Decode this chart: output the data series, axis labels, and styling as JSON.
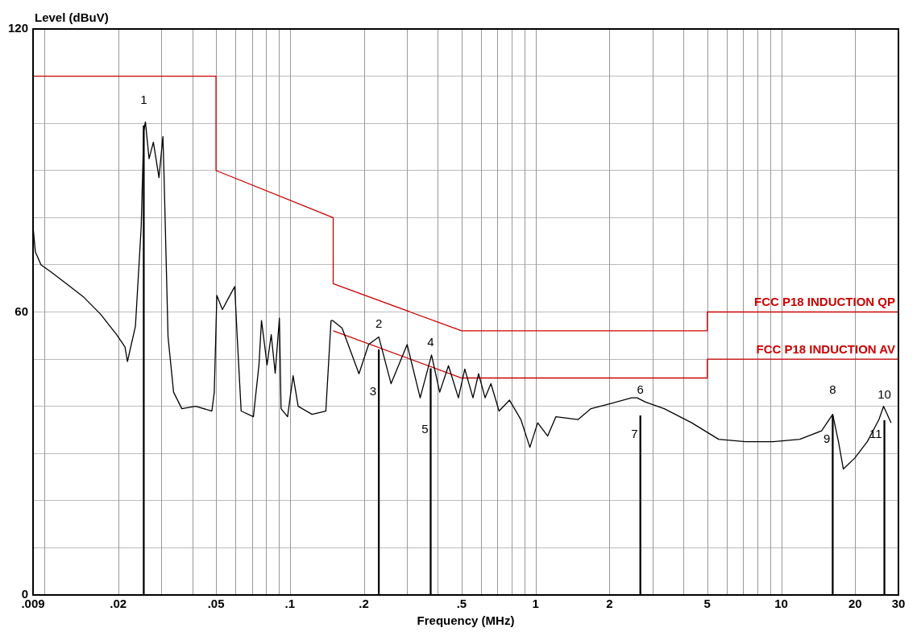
{
  "chart_data": {
    "type": "line",
    "xlabel": "Frequency (MHz)",
    "ylabel": "Level (dBuV)",
    "log": "x",
    "grid": true,
    "legend": false,
    "marker": "none",
    "line_style": "solid",
    "xlim": [
      0.009,
      30
    ],
    "ylim": [
      0,
      120
    ],
    "xticks": [
      {
        "value": 0.009,
        "label": ".009"
      },
      {
        "value": 0.01,
        "label": null
      },
      {
        "value": 0.02,
        "label": ".02"
      },
      {
        "value": 0.03,
        "label": null
      },
      {
        "value": 0.04,
        "label": null
      },
      {
        "value": 0.05,
        "label": ".05"
      },
      {
        "value": 0.06,
        "label": null
      },
      {
        "value": 0.07,
        "label": null
      },
      {
        "value": 0.08,
        "label": null
      },
      {
        "value": 0.09,
        "label": null
      },
      {
        "value": 0.1,
        "label": ".1"
      },
      {
        "value": 0.2,
        "label": ".2"
      },
      {
        "value": 0.3,
        "label": null
      },
      {
        "value": 0.4,
        "label": null
      },
      {
        "value": 0.5,
        "label": ".5"
      },
      {
        "value": 0.6,
        "label": null
      },
      {
        "value": 0.7,
        "label": null
      },
      {
        "value": 0.8,
        "label": null
      },
      {
        "value": 0.9,
        "label": null
      },
      1,
      2,
      {
        "value": 3,
        "label": null
      },
      {
        "value": 4,
        "label": null
      },
      5,
      {
        "value": 6,
        "label": null
      },
      {
        "value": 7,
        "label": null
      },
      {
        "value": 8,
        "label": null
      },
      {
        "value": 9,
        "label": null
      },
      10,
      20,
      30
    ],
    "yticks": [
      0,
      {
        "value": 10,
        "label": null
      },
      {
        "value": 20,
        "label": null
      },
      {
        "value": 30,
        "label": null
      },
      {
        "value": 40,
        "label": null
      },
      {
        "value": 50,
        "label": null
      },
      60,
      {
        "value": 70,
        "label": null
      },
      {
        "value": 80,
        "label": null
      },
      {
        "value": 90,
        "label": null
      },
      {
        "value": 100,
        "label": null
      },
      {
        "value": 110,
        "label": null
      },
      120
    ],
    "series": [
      {
        "color": "#000000",
        "x": [
          0.009,
          0.0092,
          0.0097,
          0.0107,
          0.0125,
          0.0145,
          0.0169,
          0.0197,
          0.0213,
          0.0218,
          0.0235,
          0.0248,
          0.0254,
          0.0258,
          0.0267,
          0.0278,
          0.0293,
          0.0304,
          0.0307,
          0.0319,
          0.0336,
          0.0363,
          0.0413,
          0.0481,
          0.0492,
          0.0504,
          0.0531,
          0.056,
          0.0596,
          0.061,
          0.0633,
          0.071,
          0.0748,
          0.0766,
          0.0807,
          0.0839,
          0.0871,
          0.0906,
          0.092,
          0.0978,
          0.103,
          0.108,
          0.123,
          0.14,
          0.147,
          0.149,
          0.163,
          0.191,
          0.209,
          0.23,
          0.258,
          0.3,
          0.339,
          0.377,
          0.407,
          0.442,
          0.485,
          0.515,
          0.556,
          0.586,
          0.623,
          0.658,
          0.71,
          0.783,
          0.871,
          0.948,
          1.02,
          1.12,
          1.21,
          1.49,
          1.68,
          2.06,
          2.46,
          2.59,
          2.8,
          3.34,
          4.32,
          5.56,
          7.15,
          9.27,
          11.9,
          14.6,
          16.2,
          17.1,
          17.9,
          19.9,
          22.4,
          25,
          26.1,
          28
        ],
        "values": [
          78,
          72.7,
          70,
          68.4,
          65.7,
          63.1,
          59.6,
          55.2,
          52.6,
          49.5,
          57,
          78,
          98.4,
          100.3,
          92.5,
          96,
          88.5,
          97.2,
          89.7,
          54.7,
          43,
          39.5,
          40,
          39,
          43,
          63.5,
          60.5,
          62.8,
          65.4,
          54.7,
          39,
          37.8,
          48.8,
          58.2,
          48.8,
          55.2,
          47,
          58.7,
          39.5,
          37.8,
          46.5,
          40,
          38.3,
          39,
          58.2,
          58.2,
          56.6,
          46.9,
          53.1,
          54.7,
          44.8,
          53.1,
          41.8,
          50.9,
          43,
          48.6,
          41.8,
          47.9,
          41.8,
          46.9,
          41.8,
          44.8,
          39,
          41.3,
          37.2,
          31.3,
          36.5,
          33.7,
          37.8,
          37.2,
          39.5,
          40.7,
          41.8,
          41.8,
          40.9,
          39.5,
          36.5,
          33,
          32.5,
          32.5,
          33,
          34.8,
          38.3,
          32.5,
          26.7,
          29,
          32.5,
          37.2,
          40,
          36.5
        ]
      },
      {
        "type": "line",
        "name": "FCC P18 INDUCTION QP",
        "color": "#cc0000",
        "x": [
          0.009,
          0.05,
          0.05,
          0.15,
          0.15,
          0.5,
          5,
          5,
          30
        ],
        "values": [
          110,
          110,
          90,
          80,
          66,
          56,
          56,
          60,
          60
        ]
      },
      {
        "type": "line",
        "name": "FCC P18 INDUCTION AV",
        "color": "#cc0000",
        "x": [
          0.15,
          0.5,
          5,
          5,
          30
        ],
        "values": [
          56,
          46,
          46,
          50,
          50
        ]
      },
      {
        "type": "bar",
        "color": "#000000",
        "x": [
          0.0254,
          0.23,
          0.374,
          2.67,
          16.2,
          26.3
        ],
        "values": [
          99.5,
          52,
          48,
          38,
          38,
          37
        ]
      }
    ],
    "annotations": [
      {
        "text": "1",
        "x": 0.0254,
        "y": 99.5
      },
      {
        "text": "2",
        "x": 0.23,
        "y": 52
      },
      {
        "text": "3",
        "x": 0.23,
        "y": 43
      },
      {
        "text": "4",
        "x": 0.374,
        "y": 48
      },
      {
        "text": "5",
        "x": 0.374,
        "y": 35
      },
      {
        "text": "6",
        "x": 2.67,
        "y": 38
      },
      {
        "text": "7",
        "x": 2.67,
        "y": 34
      },
      {
        "text": "8",
        "x": 16.2,
        "y": 38
      },
      {
        "text": "9",
        "x": 16.2,
        "y": 33
      },
      {
        "text": "10",
        "x": 26.3,
        "y": 37
      },
      {
        "text": "11",
        "x": 26.3,
        "y": 34
      }
    ]
  }
}
